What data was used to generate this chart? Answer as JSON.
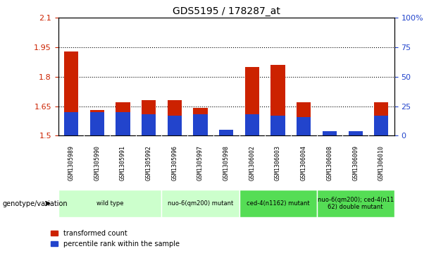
{
  "title": "GDS5195 / 178287_at",
  "samples": [
    "GSM1305989",
    "GSM1305990",
    "GSM1305991",
    "GSM1305992",
    "GSM1305996",
    "GSM1305997",
    "GSM1305998",
    "GSM1306002",
    "GSM1306003",
    "GSM1306004",
    "GSM1306008",
    "GSM1306009",
    "GSM1306010"
  ],
  "red_values": [
    1.93,
    1.63,
    1.67,
    1.68,
    1.68,
    1.64,
    1.52,
    1.85,
    1.86,
    1.67,
    1.52,
    1.52,
    1.67
  ],
  "blue_percentiles": [
    20,
    20,
    20,
    18,
    17,
    18,
    5,
    18,
    17,
    16,
    4,
    4,
    17
  ],
  "ymin": 1.5,
  "ymax": 2.1,
  "yticks": [
    1.5,
    1.65,
    1.8,
    1.95,
    2.1
  ],
  "ytick_labels": [
    "1.5",
    "1.65",
    "1.8",
    "1.95",
    "2.1"
  ],
  "right_yticks": [
    0,
    25,
    50,
    75,
    100
  ],
  "right_ytick_labels": [
    "0",
    "25",
    "50",
    "75",
    "100%"
  ],
  "bar_width": 0.55,
  "red_color": "#cc2200",
  "blue_color": "#2244cc",
  "genotype_groups": [
    {
      "label": "wild type",
      "start": 0,
      "end": 3,
      "color": "#ccffcc"
    },
    {
      "label": "nuo-6(qm200) mutant",
      "start": 4,
      "end": 6,
      "color": "#ccffcc"
    },
    {
      "label": "ced-4(n1162) mutant",
      "start": 7,
      "end": 9,
      "color": "#55dd55"
    },
    {
      "label": "nuo-6(qm200); ced-4(n11\n62) double mutant",
      "start": 10,
      "end": 12,
      "color": "#55dd55"
    }
  ],
  "genotype_label": "genotype/variation",
  "legend_red": "transformed count",
  "legend_blue": "percentile rank within the sample",
  "bg_color": "#ffffff",
  "tick_label_color_left": "#cc2200",
  "tick_label_color_right": "#2244cc",
  "sample_bg": "#cccccc"
}
